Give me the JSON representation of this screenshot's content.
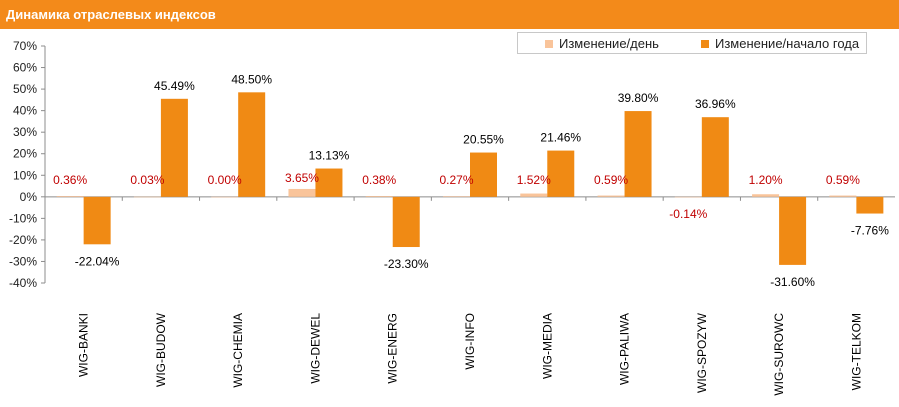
{
  "header": {
    "title": "Динамика отраслевых индексов"
  },
  "colors": {
    "daily": "#f9c49a",
    "ytd": "#f08a14",
    "daily_label": "#c00000",
    "ytd_label": "#000000",
    "title_bg": "#f38a1a"
  },
  "chart_data": {
    "type": "bar",
    "categories": [
      "WIG-BANKI",
      "WIG-BUDOW",
      "WIG-CHEMIA",
      "WIG-DEWEL",
      "WIG-ENERG",
      "WIG-INFO",
      "WIG-MEDIA",
      "WIG-PALIWA",
      "WIG-SPOZYW",
      "WIG-SUROWC",
      "WIG-TELKOM"
    ],
    "series": [
      {
        "name": "Изменение/день",
        "values": [
          0.36,
          0.03,
          0.0,
          3.65,
          0.38,
          0.27,
          1.52,
          0.59,
          -0.14,
          1.2,
          0.59
        ],
        "labels": [
          "0.36%",
          "0.03%",
          "0.00%",
          "3.65%",
          "0.38%",
          "0.27%",
          "1.52%",
          "0.59%",
          "-0.14%",
          "1.20%",
          "0.59%"
        ]
      },
      {
        "name": "Изменение/начало года",
        "values": [
          -22.04,
          45.49,
          48.5,
          13.13,
          -23.3,
          20.55,
          21.46,
          39.8,
          36.96,
          -31.6,
          -7.76
        ],
        "labels": [
          "-22.04%",
          "45.49%",
          "48.50%",
          "13.13%",
          "-23.30%",
          "20.55%",
          "21.46%",
          "39.80%",
          "36.96%",
          "-31.60%",
          "-7.76%"
        ]
      }
    ],
    "ylim": [
      -40,
      70
    ],
    "yticks": [
      "-40%",
      "-30%",
      "-20%",
      "-10%",
      "0%",
      "10%",
      "20%",
      "30%",
      "40%",
      "50%",
      "60%",
      "70%"
    ],
    "legend": "top-right",
    "grid": false
  }
}
